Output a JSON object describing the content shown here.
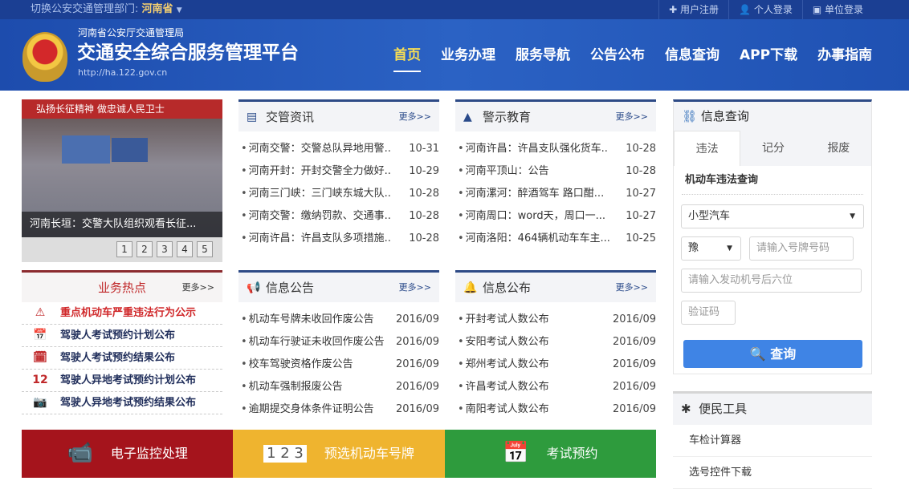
{
  "topbar": {
    "switch_label": "切换公安交通管理部门:",
    "province": "河南省",
    "links": [
      "用户注册",
      "个人登录",
      "单位登录"
    ]
  },
  "header": {
    "org": "河南省公安厅交通管理局",
    "title": "交通安全综合服务管理平台",
    "url": "http://ha.122.gov.cn",
    "nav": [
      "首页",
      "业务办理",
      "服务导航",
      "公告公布",
      "信息查询",
      "APP下载",
      "办事指南"
    ],
    "active_nav": "首页"
  },
  "carousel": {
    "banner": "弘扬长征精神  做忠诚人民卫士",
    "caption": "河南长垣：交警大队组织观看长征...",
    "pages": [
      "1",
      "2",
      "3",
      "4",
      "5"
    ]
  },
  "more_label": "更多>>",
  "news": {
    "title": "交管资讯",
    "items": [
      {
        "t": "河南交警：交警总队异地用警..",
        "d": "10-31"
      },
      {
        "t": "河南开封：开封交警全力做好..",
        "d": "10-29"
      },
      {
        "t": "河南三门峡：三门峡东城大队..",
        "d": "10-28"
      },
      {
        "t": "河南交警：缴纳罚款、交通事..",
        "d": "10-28"
      },
      {
        "t": "河南许昌：许昌支队多项措施..",
        "d": "10-28"
      }
    ]
  },
  "warning": {
    "title": "警示教育",
    "items": [
      {
        "t": "河南许昌：许昌支队强化货车..",
        "d": "10-28"
      },
      {
        "t": "河南平顶山：公告",
        "d": "10-28"
      },
      {
        "t": "河南漯河：醉酒驾车 路口酣...",
        "d": "10-27"
      },
      {
        "t": "河南周口：word天，周口一...",
        "d": "10-27"
      },
      {
        "t": "河南洛阳：464辆机动车车主...",
        "d": "10-25"
      }
    ]
  },
  "notice": {
    "title": "信息公告",
    "items": [
      {
        "t": "机动车号牌未收回作废公告",
        "d": "2016/09"
      },
      {
        "t": "机动车行驶证未收回作废公告",
        "d": "2016/09"
      },
      {
        "t": "校车驾驶资格作废公告",
        "d": "2016/09"
      },
      {
        "t": "机动车强制报废公告",
        "d": "2016/09"
      },
      {
        "t": "逾期提交身体条件证明公告",
        "d": "2016/09"
      }
    ]
  },
  "publish": {
    "title": "信息公布",
    "items": [
      {
        "t": "开封考试人数公布",
        "d": "2016/09"
      },
      {
        "t": "安阳考试人数公布",
        "d": "2016/09"
      },
      {
        "t": "郑州考试人数公布",
        "d": "2016/09"
      },
      {
        "t": "许昌考试人数公布",
        "d": "2016/09"
      },
      {
        "t": "南阳考试人数公布",
        "d": "2016/09"
      }
    ]
  },
  "hot": {
    "title": "业务热点",
    "items": [
      "重点机动车严重违法行为公示",
      "驾驶人考试预约计划公布",
      "驾驶人考试预约结果公布",
      "驾驶人异地考试预约计划公布",
      "驾驶人异地考试预约结果公布"
    ]
  },
  "banners": [
    {
      "label": "电子监控处理",
      "color": "#a5141c"
    },
    {
      "label": "预选机动车号牌",
      "color": "#efb42f"
    },
    {
      "label": "考试预约",
      "color": "#2e9b3d"
    }
  ],
  "query": {
    "title": "信息查询",
    "tabs": [
      "违法",
      "记分",
      "报废"
    ],
    "subtitle": "机动车违法查询",
    "vehicle_type": "小型汽车",
    "province_prefix": "豫",
    "plate_placeholder": "请输入号牌号码",
    "engine_placeholder": "请输入发动机号后六位",
    "captcha_placeholder": "验证码",
    "submit": "查询"
  },
  "tools": {
    "title": "便民工具",
    "items": [
      "车检计算器",
      "选号控件下载"
    ]
  }
}
